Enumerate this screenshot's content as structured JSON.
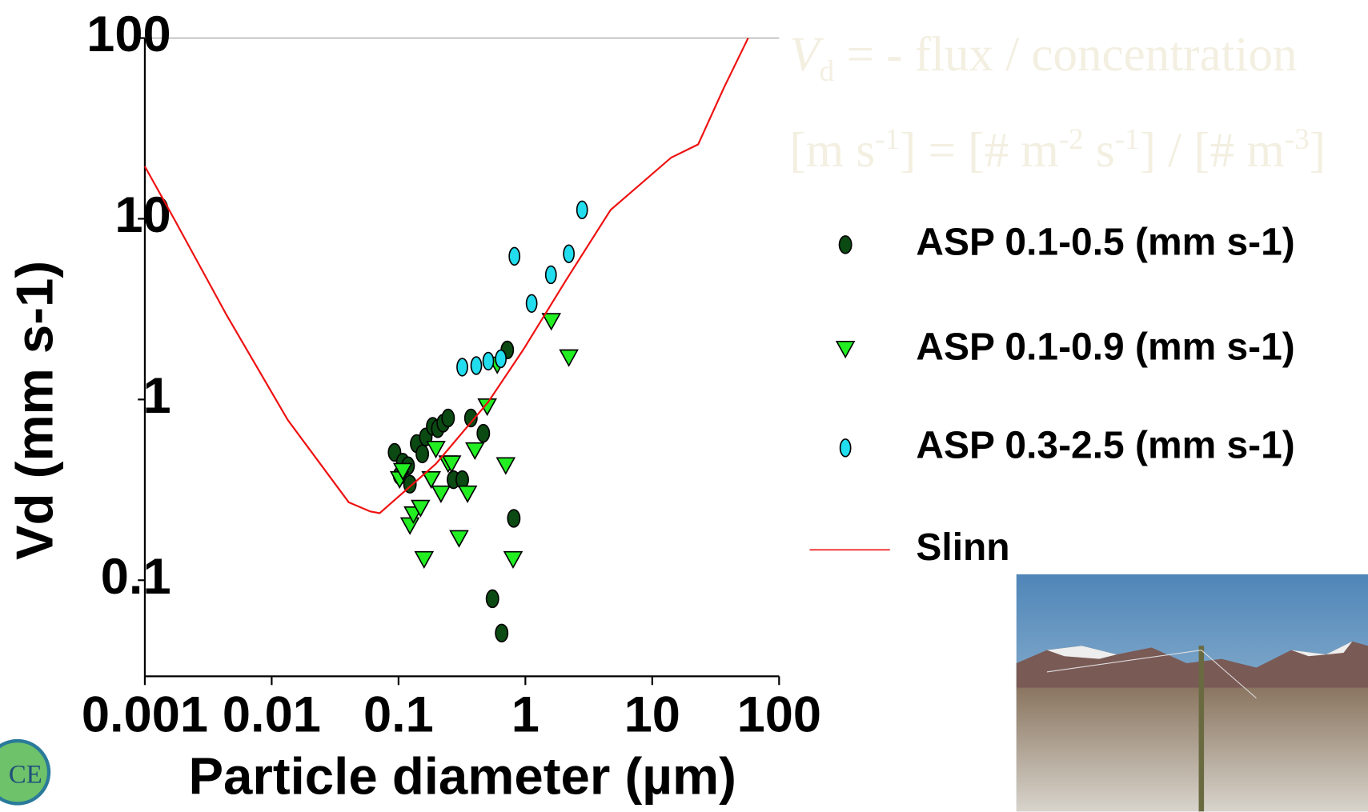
{
  "chart_data": {
    "type": "scatter",
    "y_label": "Vd (mm s-1)",
    "x_label": "Particle diameter (µm)",
    "annotations": [
      {
        "parts": [
          "V",
          "d",
          " = - flux / concentration"
        ]
      },
      {
        "parts": [
          "[m s",
          "-1",
          "] = [# m",
          "-2",
          " s",
          "-1",
          "] / [# m",
          "-3",
          "]"
        ]
      }
    ],
    "xlim": [
      0.001,
      100
    ],
    "ylim": [
      0.0294,
      100
    ],
    "xticks": [
      0.001,
      0.01,
      0.1,
      1,
      10,
      100
    ],
    "yticks": [
      0.1,
      1,
      10,
      100
    ],
    "log_x": true,
    "log_y": true,
    "grid": false,
    "legend": "right",
    "series": [
      {
        "name": "ASP 0.1-0.5 (mm s-1)",
        "marker": "circle",
        "color": "#0b4a12",
        "x": [
          0.093,
          0.108,
          0.119,
          0.102,
          0.123,
          0.139,
          0.154,
          0.164,
          0.186,
          0.204,
          0.225,
          0.246,
          0.271,
          0.318,
          0.372,
          0.466,
          0.72,
          0.81,
          0.55,
          0.65
        ],
        "values": [
          0.51,
          0.45,
          0.43,
          0.38,
          0.34,
          0.57,
          0.5,
          0.62,
          0.71,
          0.69,
          0.74,
          0.79,
          0.36,
          0.36,
          0.79,
          0.65,
          1.88,
          0.22,
          0.079,
          0.051
        ]
      },
      {
        "name": "ASP 0.1-0.9 (mm s-1)",
        "marker": "triangle",
        "color": "#22ee22",
        "x": [
          0.102,
          0.108,
          0.123,
          0.131,
          0.149,
          0.159,
          0.181,
          0.197,
          0.216,
          0.246,
          0.262,
          0.3,
          0.35,
          0.4,
          0.5,
          0.6,
          0.7,
          0.8,
          1.6,
          2.2
        ],
        "values": [
          0.36,
          0.4,
          0.2,
          0.23,
          0.25,
          0.13,
          0.36,
          0.53,
          0.3,
          0.44,
          0.44,
          0.17,
          0.3,
          0.52,
          0.91,
          1.55,
          0.43,
          0.13,
          2.7,
          1.7
        ]
      },
      {
        "name": "ASP 0.3-2.5 (mm s-1)",
        "marker": "ellipse",
        "color": "#22ddee",
        "x": [
          0.318,
          0.41,
          0.51,
          0.64,
          0.82,
          1.12,
          1.59,
          2.2,
          2.8
        ],
        "values": [
          1.51,
          1.54,
          1.63,
          1.68,
          6.2,
          3.4,
          4.9,
          6.4,
          11.2
        ]
      },
      {
        "name": "Slinn",
        "marker": "line",
        "color": "#ee1111",
        "x": [
          0.001,
          0.0017,
          0.0044,
          0.0134,
          0.0405,
          0.06,
          0.071,
          0.089,
          0.197,
          0.51,
          0.96,
          2.1,
          4.7,
          14.1,
          23,
          36.7,
          57
        ],
        "values": [
          19.5,
          10,
          2.94,
          0.77,
          0.27,
          0.24,
          0.235,
          0.27,
          0.44,
          0.97,
          1.88,
          4.6,
          11.2,
          21.8,
          25.8,
          53,
          100
        ]
      }
    ]
  }
}
